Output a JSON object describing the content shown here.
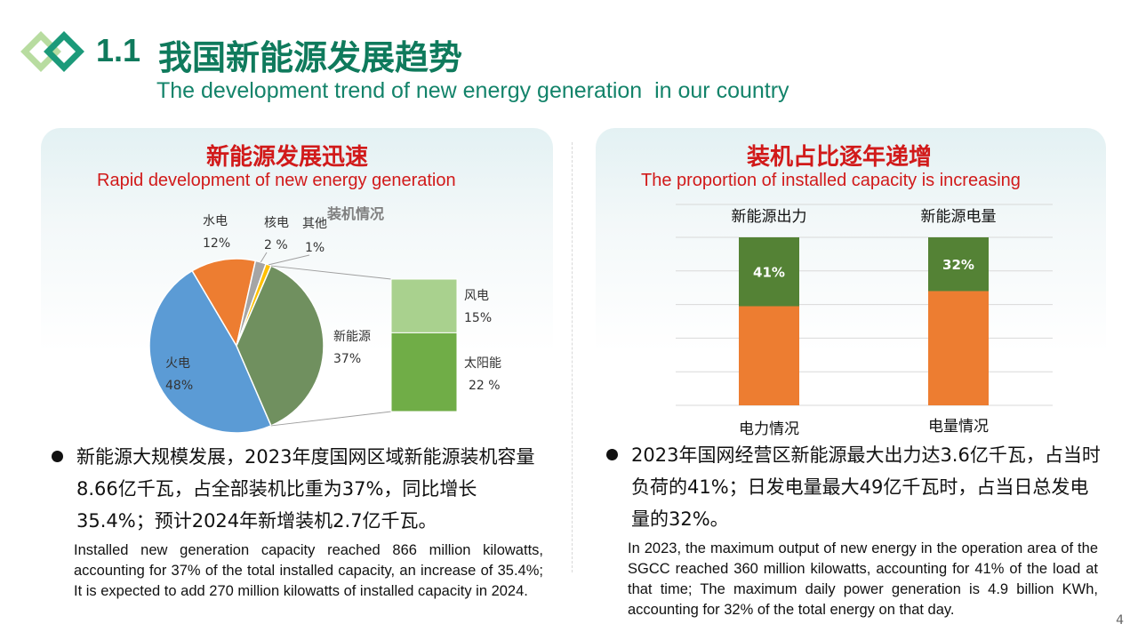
{
  "header": {
    "number": "1.1",
    "title_cn": "我国新能源发展趋势",
    "title_en": "The development trend of new energy generation  in our country"
  },
  "left_panel": {
    "title_cn": "新能源发展迅速",
    "title_en": "Rapid development of new energy generation",
    "bullet_cn": "新能源大规模发展，2023年度国网区域新能源装机容量8.66亿千瓦，占全部装机比重为37%，同比增长35.4%；预计2024年新增装机2.7亿千瓦。",
    "text_en": "Installed new generation capacity reached 866 million kilowatts, accounting for 37% of the total installed capacity, an increase of 35.4%; It is expected to add 270 million kilowatts of installed capacity in 2024."
  },
  "right_panel": {
    "title_cn": "装机占比逐年递增",
    "title_en": "The proportion of installed capacity is increasing",
    "bullet_cn": "2023年国网经营区新能源最大出力达3.6亿千瓦，占当时负荷的41%；日发电量最大49亿千瓦时，占当日总发电量的32%。",
    "text_en": "In 2023, the maximum output of new energy in the operation area of the SGCC reached 360 million kilowatts, accounting for 41% of the load at that time; The maximum daily power generation is 4.9 billion KWh, accounting for 32% of the total energy on that day."
  },
  "page_number": "4",
  "colors": {
    "brand_green": "#0f7a5c",
    "accent_red": "#d11a1a",
    "coal_blue": "#5b9bd5",
    "hydro_orange": "#ed7d31",
    "nuclear_grey": "#a5a5a5",
    "other_yellow": "#ffc000",
    "new_energy_olive": "#70905f",
    "wind_light_green": "#a9d18e",
    "solar_green": "#70ad47",
    "bar_dark_green": "#548235",
    "bar_orange": "#ed7d31"
  },
  "chart_data": [
    {
      "type": "pie",
      "title": "装机情况",
      "slices": [
        {
          "name": "火电",
          "label": "48%",
          "value": 48
        },
        {
          "name": "水电",
          "label": "12%",
          "value": 12
        },
        {
          "name": "核电",
          "label": "2 %",
          "value": 2
        },
        {
          "name": "其他",
          "label": "1%",
          "value": 1
        },
        {
          "name": "新能源",
          "label": "37%",
          "value": 37
        }
      ],
      "breakdown_of": "新能源",
      "breakdown": [
        {
          "name": "风电",
          "label": "15%",
          "value": 15
        },
        {
          "name": "太阳能",
          "label": "22 %",
          "value": 22
        }
      ]
    },
    {
      "type": "bar",
      "stacked": true,
      "categories": [
        "电力情况",
        "电量情况"
      ],
      "series_labels": [
        "新能源出力",
        "新能源电量"
      ],
      "new_energy_share": [
        41,
        32
      ],
      "value_labels": [
        "41%",
        "32%"
      ],
      "ylim": [
        0,
        100
      ],
      "grid": true
    }
  ]
}
